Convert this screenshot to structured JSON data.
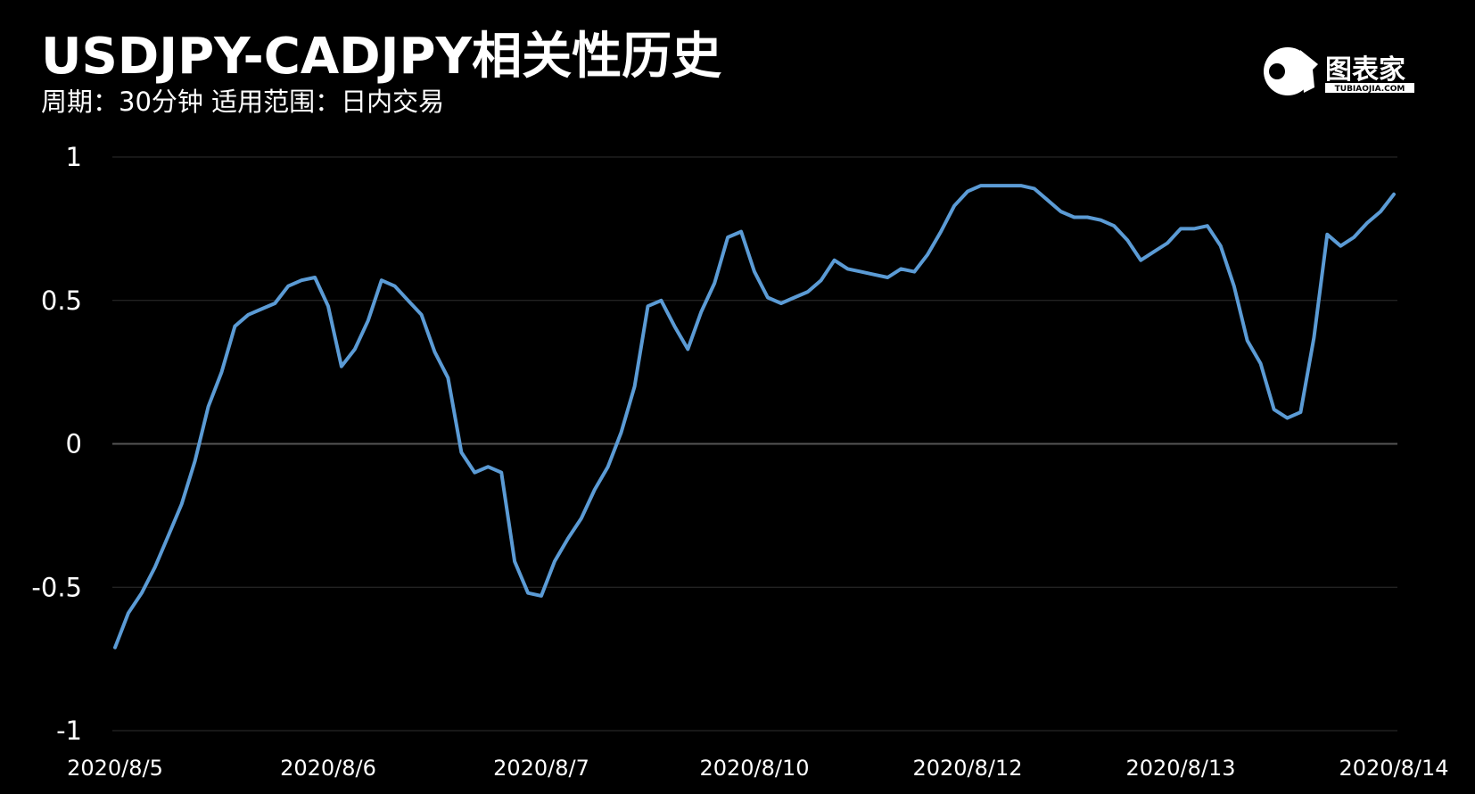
{
  "chart_data": {
    "type": "line",
    "title": "USDJPY-CADJPY相关性历史",
    "subtitle": "周期：30分钟  适用范围：日内交易",
    "logo": {
      "name": "图表家",
      "url": "TUBIAOJIA.COM"
    },
    "categories": [
      "2020/8/5",
      null,
      null,
      null,
      null,
      null,
      null,
      null,
      null,
      null,
      null,
      null,
      null,
      null,
      null,
      null,
      "2020/8/6",
      null,
      null,
      null,
      null,
      null,
      null,
      null,
      null,
      null,
      null,
      null,
      null,
      null,
      null,
      null,
      "2020/8/7",
      null,
      null,
      null,
      null,
      null,
      null,
      null,
      null,
      null,
      null,
      null,
      null,
      null,
      null,
      null,
      "2020/8/10",
      null,
      null,
      null,
      null,
      null,
      null,
      null,
      null,
      null,
      null,
      null,
      null,
      null,
      null,
      null,
      "2020/8/12",
      null,
      null,
      null,
      null,
      null,
      null,
      null,
      null,
      null,
      null,
      null,
      null,
      null,
      null,
      null,
      "2020/8/13",
      null,
      null,
      null,
      null,
      null,
      null,
      null,
      null,
      null,
      null,
      null,
      null,
      null,
      null,
      null,
      "2020/8/14"
    ],
    "values": [
      -0.71,
      -0.59,
      -0.52,
      -0.43,
      -0.32,
      -0.21,
      -0.06,
      0.13,
      0.25,
      0.41,
      0.45,
      0.47,
      0.49,
      0.55,
      0.57,
      0.58,
      0.48,
      0.27,
      0.33,
      0.43,
      0.57,
      0.55,
      0.5,
      0.45,
      0.32,
      0.23,
      -0.03,
      -0.1,
      -0.08,
      -0.1,
      -0.41,
      -0.52,
      -0.53,
      -0.41,
      -0.33,
      -0.26,
      -0.16,
      -0.08,
      0.04,
      0.2,
      0.48,
      0.5,
      0.41,
      0.33,
      0.46,
      0.56,
      0.72,
      0.74,
      0.6,
      0.51,
      0.49,
      0.51,
      0.53,
      0.57,
      0.64,
      0.61,
      0.6,
      0.59,
      0.58,
      0.61,
      0.6,
      0.66,
      0.74,
      0.83,
      0.88,
      0.9,
      0.9,
      0.9,
      0.9,
      0.89,
      0.85,
      0.81,
      0.79,
      0.79,
      0.78,
      0.76,
      0.71,
      0.64,
      0.67,
      0.7,
      0.75,
      0.75,
      0.76,
      0.69,
      0.55,
      0.36,
      0.28,
      0.12,
      0.09,
      0.11,
      0.37,
      0.73,
      0.69,
      0.72,
      0.77,
      0.81,
      0.87
    ],
    "color": "#5b9bd5",
    "ylim": [
      -1,
      1
    ],
    "yticks": [
      -1,
      -0.5,
      0,
      0.5,
      1
    ],
    "grid": true
  }
}
